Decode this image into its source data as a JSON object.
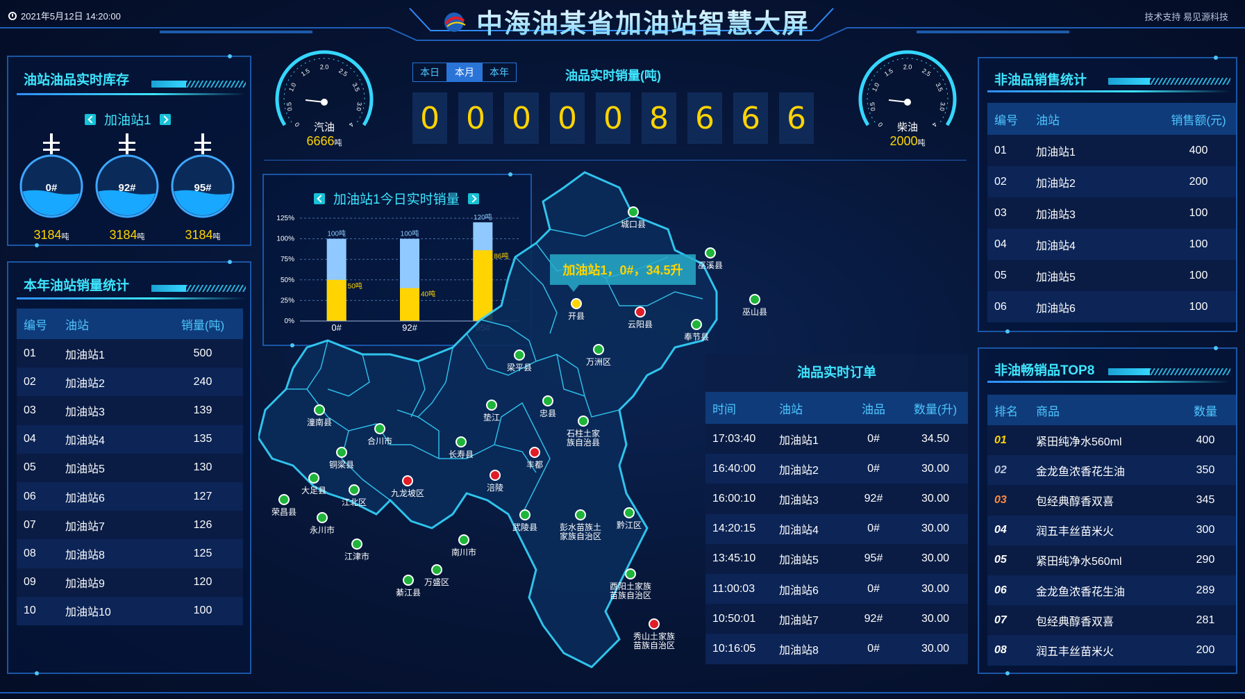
{
  "header": {
    "datetime": "2021年5月12日  14:20:00",
    "title": "中海油某省加油站智慧大屏",
    "support": "技术支持  易见源科技"
  },
  "inventory": {
    "title": "油站油品实时库存",
    "station": "加油站1",
    "tanks": [
      {
        "label": "0#",
        "value": "3184",
        "unit": "吨",
        "fill": 0.4
      },
      {
        "label": "92#",
        "value": "3184",
        "unit": "吨",
        "fill": 0.4
      },
      {
        "label": "95#",
        "value": "3184",
        "unit": "吨",
        "fill": 0.4
      }
    ]
  },
  "yearSales": {
    "title": "本年油站销量统计",
    "headers": [
      "编号",
      "油站",
      "销量(吨)"
    ],
    "rows": [
      [
        "01",
        "加油站1",
        "500"
      ],
      [
        "02",
        "加油站2",
        "240"
      ],
      [
        "03",
        "加油站3",
        "139"
      ],
      [
        "04",
        "加油站4",
        "135"
      ],
      [
        "05",
        "加油站5",
        "130"
      ],
      [
        "06",
        "加油站6",
        "127"
      ],
      [
        "07",
        "加油站7",
        "126"
      ],
      [
        "08",
        "加油站8",
        "125"
      ],
      [
        "09",
        "加油站9",
        "120"
      ],
      [
        "10",
        "加油站10",
        "100"
      ]
    ]
  },
  "gauges": {
    "gasoline": {
      "name": "汽油",
      "value": "6666",
      "unit": "吨",
      "ticks": [
        "0",
        "0.5",
        "1.0",
        "1.5",
        "2.0",
        "2.5",
        "3.5",
        "3.0",
        "4"
      ]
    },
    "diesel": {
      "name": "柴油",
      "value": "2000",
      "unit": "吨",
      "ticks": [
        "0",
        "0.5",
        "1.0",
        "1.5",
        "2.0",
        "2.5",
        "3.5",
        "3.0",
        "4"
      ]
    }
  },
  "realtime": {
    "tabs": [
      "本日",
      "本月",
      "本年"
    ],
    "activeTab": 1,
    "title": "油品实时销量(吨)",
    "digits": [
      "0",
      "0",
      "0",
      "0",
      "0",
      "8",
      "6",
      "6",
      "6"
    ]
  },
  "chart": {
    "title": "加油站1今日实时销量",
    "chart_data": {
      "type": "bar",
      "categories": [
        "0#",
        "92#",
        "95#"
      ],
      "series": [
        {
          "values": [
            100,
            100,
            120
          ]
        },
        {
          "values": [
            50,
            40,
            86
          ]
        }
      ],
      "totalLabels": [
        "100吨",
        "100吨",
        "120吨"
      ],
      "valueLabels": [
        "50吨",
        "40吨",
        "86吨"
      ],
      "yticks": [
        "0%",
        "25%",
        "50%",
        "75%",
        "100%",
        "125%"
      ],
      "ylim": [
        0,
        125
      ],
      "colors": {
        "total": "#8fc9ff",
        "value": "#ffd400"
      }
    }
  },
  "map": {
    "tooltip": "加油站1，0#，34.5升",
    "places": [
      {
        "name": "城口县",
        "pin": "green"
      },
      {
        "name": "巫溪县",
        "pin": "green"
      },
      {
        "name": "开县",
        "pin": "yellow"
      },
      {
        "name": "云阳县",
        "pin": "red"
      },
      {
        "name": "奉节县",
        "pin": "green"
      },
      {
        "name": "巫山县",
        "pin": "green"
      },
      {
        "name": "梁平县",
        "pin": "green"
      },
      {
        "name": "万洲区",
        "pin": "green"
      },
      {
        "name": "潼南县",
        "pin": "green"
      },
      {
        "name": "合川市",
        "pin": "green"
      },
      {
        "name": "垫江",
        "pin": "green"
      },
      {
        "name": "忠县",
        "pin": "green"
      },
      {
        "name": "石柱土家\n族自治县",
        "pin": "green"
      },
      {
        "name": "铜梁县",
        "pin": "green"
      },
      {
        "name": "长寿县",
        "pin": "green"
      },
      {
        "name": "丰都",
        "pin": "red"
      },
      {
        "name": "大足县",
        "pin": "green"
      },
      {
        "name": "九龙坡区",
        "pin": "red"
      },
      {
        "name": "涪陵",
        "pin": "red"
      },
      {
        "name": "江北区",
        "pin": "green"
      },
      {
        "name": "荣昌县",
        "pin": "green"
      },
      {
        "name": "永川市",
        "pin": "green"
      },
      {
        "name": "武陵县",
        "pin": "green"
      },
      {
        "name": "彭水苗族土\n家族自治区",
        "pin": "green"
      },
      {
        "name": "黔江区",
        "pin": "green"
      },
      {
        "name": "江津市",
        "pin": "green"
      },
      {
        "name": "南川市",
        "pin": "green"
      },
      {
        "name": "万盛区",
        "pin": "green"
      },
      {
        "name": "綦江县",
        "pin": "green"
      },
      {
        "name": "酉阳土家族\n苗族自治区",
        "pin": "green"
      },
      {
        "name": "秀山土家族\n苗族自治区",
        "pin": "red"
      }
    ]
  },
  "orders": {
    "title": "油品实时订单",
    "headers": [
      "时间",
      "油站",
      "油品",
      "数量(升)"
    ],
    "rows": [
      [
        "17:03:40",
        "加油站1",
        "0#",
        "34.50"
      ],
      [
        "16:40:00",
        "加油站2",
        "0#",
        "30.00"
      ],
      [
        "16:00:10",
        "加油站3",
        "92#",
        "30.00"
      ],
      [
        "14:20:15",
        "加油站4",
        "0#",
        "30.00"
      ],
      [
        "13:45:10",
        "加油站5",
        "95#",
        "30.00"
      ],
      [
        "11:00:03",
        "加油站6",
        "0#",
        "30.00"
      ],
      [
        "10:50:01",
        "加油站7",
        "92#",
        "30.00"
      ],
      [
        "10:16:05",
        "加油站8",
        "0#",
        "30.00"
      ]
    ]
  },
  "nonOil": {
    "title": "非油品销售统计",
    "headers": [
      "编号",
      "油站",
      "销售额(元)"
    ],
    "rows": [
      [
        "01",
        "加油站1",
        "400"
      ],
      [
        "02",
        "加油站2",
        "200"
      ],
      [
        "03",
        "加油站3",
        "100"
      ],
      [
        "04",
        "加油站4",
        "100"
      ],
      [
        "05",
        "加油站5",
        "100"
      ],
      [
        "06",
        "加油站6",
        "100"
      ]
    ]
  },
  "top8": {
    "title": "非油畅销品TOP8",
    "headers": [
      "排名",
      "商品",
      "数量"
    ],
    "rankColors": [
      "#ffd400",
      "#b9c4dc",
      "#ff8a3d"
    ],
    "rows": [
      [
        "01",
        "紧田纯净水560ml",
        "400"
      ],
      [
        "02",
        "金龙鱼浓香花生油",
        "350"
      ],
      [
        "03",
        "包经典醇香双喜",
        "345"
      ],
      [
        "04",
        "润五丰丝苗米火",
        "300"
      ],
      [
        "05",
        "紧田纯净水560ml",
        "290"
      ],
      [
        "06",
        "金龙鱼浓香花生油",
        "289"
      ],
      [
        "07",
        "包经典醇香双喜",
        "281"
      ],
      [
        "08",
        "润五丰丝苗米火",
        "200"
      ]
    ]
  }
}
